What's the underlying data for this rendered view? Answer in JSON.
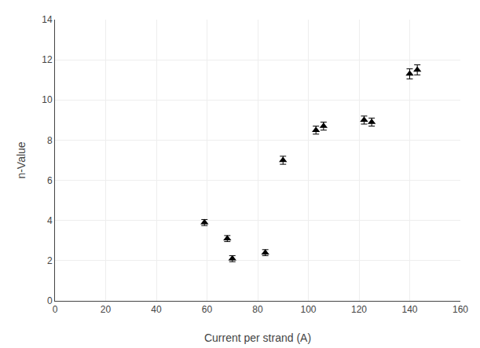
{
  "chart_data": {
    "type": "scatter",
    "x": [
      59,
      68,
      70,
      83,
      90,
      103,
      106,
      122,
      125,
      140,
      143
    ],
    "values": [
      3.9,
      3.1,
      2.1,
      2.4,
      7.0,
      8.5,
      8.7,
      9.0,
      8.9,
      11.3,
      11.5
    ],
    "yerr": [
      0.15,
      0.15,
      0.15,
      0.15,
      0.2,
      0.2,
      0.2,
      0.2,
      0.2,
      0.25,
      0.25
    ],
    "xlabel": "Current per strand (A)",
    "ylabel": "n-Value",
    "xlim": [
      0,
      160
    ],
    "ylim": [
      0,
      14
    ],
    "xticks": [
      0,
      20,
      40,
      60,
      80,
      100,
      120,
      140,
      160
    ],
    "yticks": [
      0,
      2,
      4,
      6,
      8,
      10,
      12,
      14
    ],
    "color": "#000000",
    "marker": "triangle-up",
    "grid": true
  }
}
